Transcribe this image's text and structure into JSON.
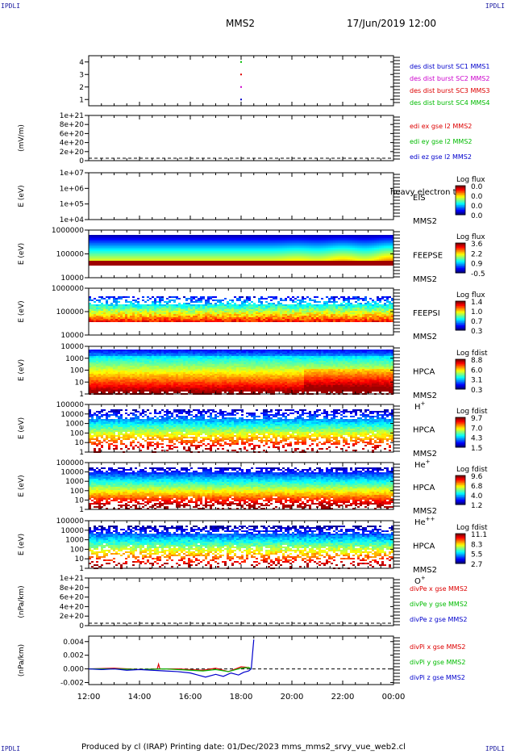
{
  "corners": {
    "top_left": "IPDLI",
    "top_right": "IPDLI",
    "bottom_left": "IPDLI",
    "bottom_right": "IPDLI"
  },
  "header": {
    "spacecraft": "MMS2",
    "datetime": "17/Jun/2019 12:00"
  },
  "footer": {
    "text": "Produced by cl (IRAP)   Printing date: 01/Dec/2023   mms_mms2_srvy_vue_web2.cl"
  },
  "time_axis": {
    "ticks": [
      "12:00",
      "14:00",
      "16:00",
      "18:00",
      "20:00",
      "22:00",
      "00:00"
    ]
  },
  "colors": {
    "series_red": "#dd0000",
    "series_green": "#00bb00",
    "series_blue": "#0000cc",
    "series_magenta": "#cc00cc",
    "label_blue": "#1a1aa0",
    "red_series_label": "#cc0000"
  },
  "chart_data": [
    {
      "type": "scatter",
      "yticks": [
        "4",
        "3",
        "2",
        "1"
      ],
      "ylim": [
        0.5,
        4.5
      ],
      "series": [
        {
          "name": "des dist burst SC1 MMS1",
          "color": "#0000cc"
        },
        {
          "name": "des dist burst SC2 MMS2",
          "color": "#cc00cc"
        },
        {
          "name": "des dist burst SC3 MMS3",
          "color": "#dd0000"
        },
        {
          "name": "des dist burst SC4 MMS4",
          "color": "#00bb00"
        }
      ],
      "points": [
        {
          "x": 18.0,
          "y": 4,
          "color": "#00bb00"
        },
        {
          "x": 18.0,
          "y": 3,
          "color": "#dd0000"
        },
        {
          "x": 18.0,
          "y": 2,
          "color": "#cc00cc"
        },
        {
          "x": 18.0,
          "y": 1,
          "color": "#0000cc"
        }
      ]
    },
    {
      "type": "line",
      "ylabel": "(mV/m)",
      "yticks": [
        "1e+21",
        "8e+20",
        "6e+20",
        "4e+20",
        "2e+20",
        "0"
      ],
      "ylim": [
        0,
        1e+21
      ],
      "zero_line": true,
      "series": [
        {
          "name": "edi ex gse l2 MMS2",
          "color": "#dd0000"
        },
        {
          "name": "edi ey gse l2 MMS2",
          "color": "#00bb00"
        },
        {
          "name": "edi ez gse l2 MMS2",
          "color": "#0000cc"
        }
      ]
    },
    {
      "type": "heatmap",
      "ylabel": "E (eV)",
      "yticks": [
        "1e+07",
        "1e+06",
        "1e+05",
        "1e+04"
      ],
      "instrument": "EIS",
      "species": "",
      "spacecraft": "MMS2",
      "overlay_text": "heavy electron to",
      "colorbar": {
        "title": "Log flux",
        "ticks": [
          "0.0",
          "0.0",
          "0.0",
          "0.0"
        ]
      },
      "pattern": "empty"
    },
    {
      "type": "heatmap",
      "ylabel": "E (eV)",
      "yticks": [
        "1000000",
        "100000",
        "10000"
      ],
      "instrument": "FEEPSE",
      "species": "",
      "spacecraft": "MMS2",
      "colorbar": {
        "title": "Log flux",
        "ticks": [
          "3.6",
          "2.2",
          "0.9",
          "-0.5"
        ]
      },
      "pattern": "feepse"
    },
    {
      "type": "heatmap",
      "ylabel": "E (eV)",
      "yticks": [
        "1000000",
        "100000",
        "10000"
      ],
      "instrument": "FEEPSI",
      "species": "",
      "spacecraft": "MMS2",
      "colorbar": {
        "title": "Log flux",
        "ticks": [
          "1.4",
          "1.0",
          "0.7",
          "0.3"
        ]
      },
      "pattern": "feepsi"
    },
    {
      "type": "heatmap",
      "ylabel": "E (eV)",
      "yticks": [
        "10000",
        "1000",
        "100",
        "10",
        "1"
      ],
      "instrument": "HPCA",
      "spacecraft": "MMS2",
      "species": "H",
      "species_sup": "+",
      "colorbar": {
        "title": "Log fdist",
        "ticks": [
          "8.8",
          "6.0",
          "3.1",
          "0.3"
        ]
      },
      "pattern": "hplus"
    },
    {
      "type": "heatmap",
      "ylabel": "E (eV)",
      "yticks": [
        "100000",
        "10000",
        "1000",
        "100",
        "10",
        "1"
      ],
      "instrument": "HPCA",
      "spacecraft": "MMS2",
      "species": "He",
      "species_sup": "+",
      "colorbar": {
        "title": "Log fdist",
        "ticks": [
          "9.7",
          "7.0",
          "4.3",
          "1.5"
        ]
      },
      "pattern": "heplus"
    },
    {
      "type": "heatmap",
      "ylabel": "E (eV)",
      "yticks": [
        "100000",
        "10000",
        "1000",
        "100",
        "10",
        "1"
      ],
      "instrument": "HPCA",
      "spacecraft": "MMS2",
      "species": "He",
      "species_sup": "++",
      "colorbar": {
        "title": "Log fdist",
        "ticks": [
          "9.6",
          "6.8",
          "4.0",
          "1.2"
        ]
      },
      "pattern": "hepp"
    },
    {
      "type": "heatmap",
      "ylabel": "E (eV)",
      "yticks": [
        "100000",
        "10000",
        "1000",
        "100",
        "10",
        "1"
      ],
      "instrument": "HPCA",
      "spacecraft": "MMS2",
      "species": "O",
      "species_sup": "+",
      "colorbar": {
        "title": "Log fdist",
        "ticks": [
          "11.1",
          "8.3",
          "5.5",
          "2.7"
        ]
      },
      "pattern": "oplus"
    },
    {
      "type": "line",
      "ylabel": "(nPa/km)",
      "yticks": [
        "1e+21",
        "8e+20",
        "6e+20",
        "4e+20",
        "2e+20",
        "0"
      ],
      "ylim": [
        0,
        1e+21
      ],
      "zero_line": true,
      "series": [
        {
          "name": "divPe x gse MMS2",
          "color": "#dd0000"
        },
        {
          "name": "divPe y gse MMS2",
          "color": "#00bb00"
        },
        {
          "name": "divPe z gse MMS2",
          "color": "#0000cc"
        }
      ]
    },
    {
      "type": "line",
      "ylabel": "(nPa/km)",
      "yticks": [
        "0.004",
        "0.002",
        "0.000",
        "-0.002"
      ],
      "ytick_values": [
        0.004,
        0.002,
        0.0,
        -0.002
      ],
      "ylim": [
        -0.0023,
        0.0048
      ],
      "zero_line": true,
      "series": [
        {
          "name": "divPi x gse MMS2",
          "color": "#dd0000",
          "x": [
            12.0,
            13.0,
            14.0,
            14.7,
            14.75,
            14.8,
            15.5,
            16.5,
            17.0,
            17.5,
            18.0,
            18.3,
            18.4
          ],
          "y": [
            0.0,
            0.0001,
            -0.0001,
            0.0,
            0.0007,
            0.0,
            0.0,
            -0.0002,
            0.0001,
            -0.0004,
            0.0003,
            0.0002,
            0.0
          ]
        },
        {
          "name": "divPi y gse MMS2",
          "color": "#00bb00",
          "x": [
            12.0,
            13.0,
            14.0,
            15.0,
            16.0,
            16.5,
            17.0,
            17.5,
            18.0,
            18.3,
            18.4
          ],
          "y": [
            0.0,
            0.0,
            -0.0001,
            0.0,
            -0.0002,
            -0.0003,
            -0.0001,
            -0.0004,
            0.0001,
            0.0002,
            0.0
          ]
        },
        {
          "name": "divPi z gse MMS2",
          "color": "#0000cc",
          "x": [
            12.0,
            12.5,
            13.0,
            13.5,
            14.0,
            14.5,
            15.0,
            15.5,
            16.0,
            16.3,
            16.6,
            17.0,
            17.3,
            17.6,
            17.9,
            18.1,
            18.3,
            18.4,
            18.45,
            18.5
          ],
          "y": [
            0.0,
            -0.0001,
            0.0,
            -0.0002,
            -0.0001,
            -0.0002,
            -0.0003,
            -0.0004,
            -0.0006,
            -0.0009,
            -0.0012,
            -0.0008,
            -0.0011,
            -0.0006,
            -0.0009,
            -0.0005,
            -0.0003,
            0.0,
            0.0022,
            0.0043
          ]
        }
      ]
    }
  ]
}
